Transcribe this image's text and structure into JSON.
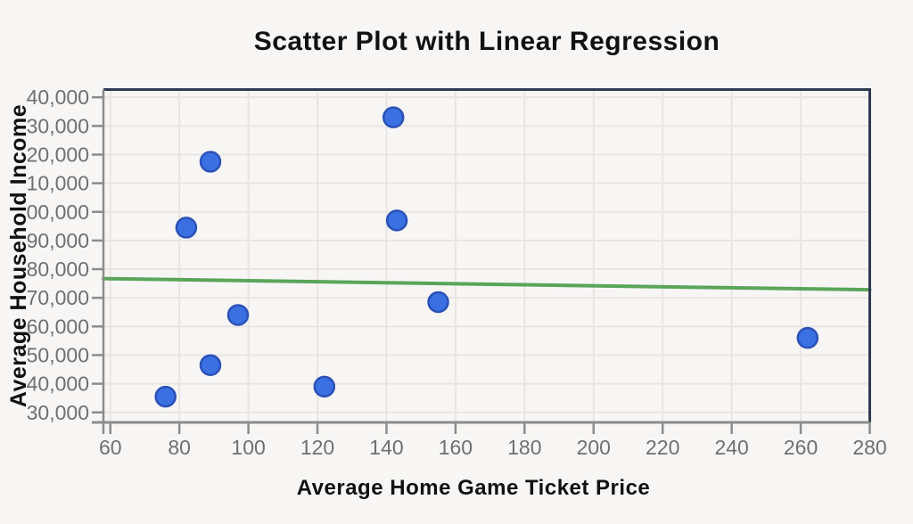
{
  "chart_data": {
    "type": "scatter",
    "title": "Scatter Plot with Linear Regression",
    "xlabel": "Average Home Game Ticket Price",
    "ylabel": "Average Household Income",
    "grid": true,
    "legend": "none",
    "xlim": [
      58,
      280
    ],
    "ylim": [
      26500,
      142700
    ],
    "x_ticks": [
      60,
      80,
      100,
      120,
      140,
      160,
      180,
      200,
      220,
      240,
      260,
      280
    ],
    "y_ticks": [
      140000,
      130000,
      120000,
      110000,
      100000,
      90000,
      80000,
      70000,
      60000,
      50000,
      40000,
      30000
    ],
    "y_tick_labels_displayed": [
      "40,000",
      "30,000",
      "20,000",
      "10,000",
      "00,000",
      "90,000",
      "80,000",
      "70,000",
      "60,000",
      "50,000",
      "40,000",
      "30,000"
    ],
    "points": [
      {
        "x": 76,
        "y": 35500
      },
      {
        "x": 82,
        "y": 94500
      },
      {
        "x": 89,
        "y": 117500
      },
      {
        "x": 89,
        "y": 46500
      },
      {
        "x": 97,
        "y": 64000
      },
      {
        "x": 122,
        "y": 39000
      },
      {
        "x": 142,
        "y": 133000
      },
      {
        "x": 143,
        "y": 97000
      },
      {
        "x": 155,
        "y": 68500
      },
      {
        "x": 262,
        "y": 56000
      }
    ],
    "regression_line": {
      "x1": 58,
      "y1": 76700,
      "x2": 280,
      "y2": 72800
    },
    "colors": {
      "background": "#f7f6f5",
      "grid": "#e9e5e2",
      "axis_gray": "#8c8c8c",
      "border_navy": "#2e3a50",
      "tick_label": "#6f6f6f",
      "point_fill": "#3b70e2",
      "point_stroke": "#2b51b8",
      "regression": "#5aa55a",
      "title_text": "#111111"
    }
  }
}
